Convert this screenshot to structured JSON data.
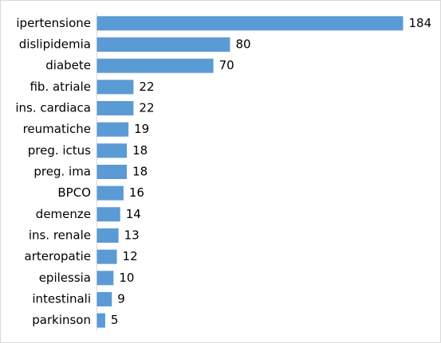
{
  "chart_data": {
    "type": "bar",
    "orientation": "horizontal",
    "categories": [
      "ipertensione",
      "dislipidemia",
      "diabete",
      "fib. atriale",
      "ins. cardiaca",
      "reumatiche",
      "preg. ictus",
      "preg. ima",
      "BPCO",
      "demenze",
      "ins. renale",
      "arteropatie",
      "epilessia",
      "intestinali",
      "parkinson"
    ],
    "values": [
      184,
      80,
      70,
      22,
      22,
      19,
      18,
      18,
      16,
      14,
      13,
      12,
      10,
      9,
      5
    ],
    "color": "#5b9bd5",
    "data_labels": true
  }
}
